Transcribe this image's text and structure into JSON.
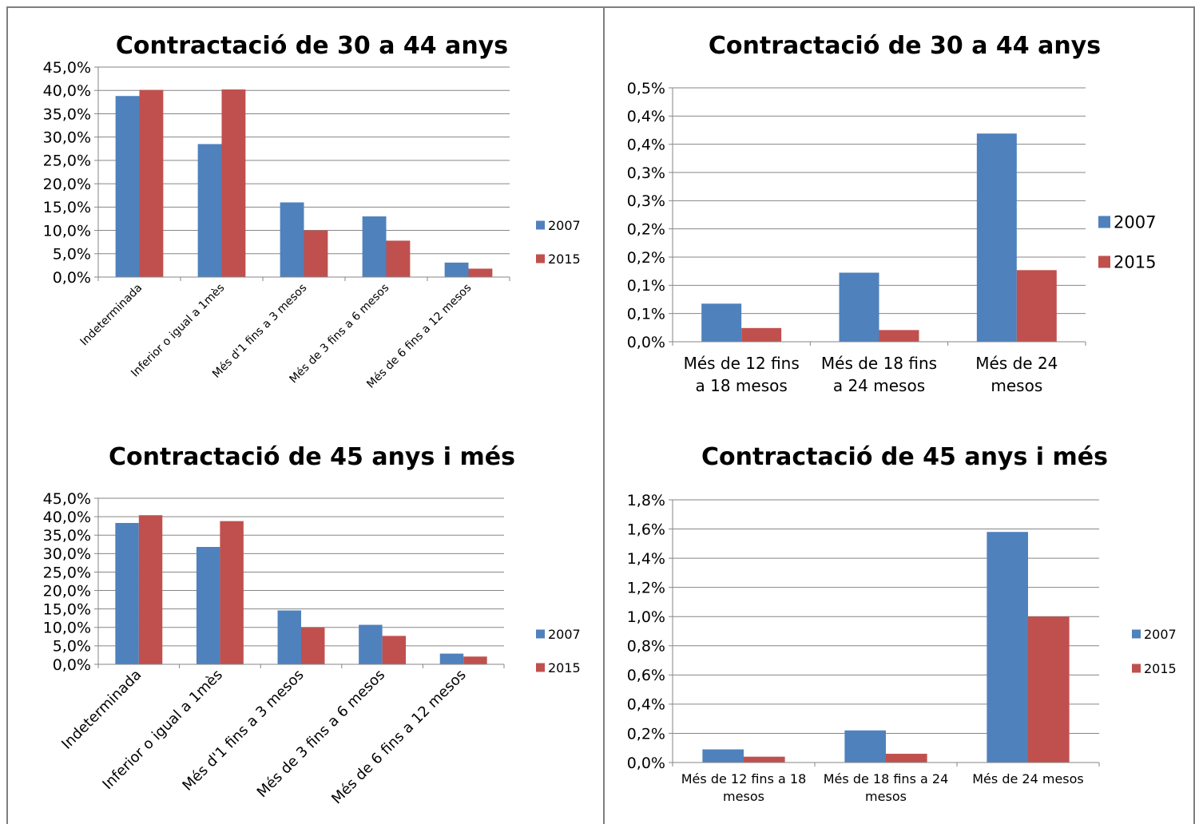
{
  "colors": {
    "series_2007": "#4f81bd",
    "series_2015": "#c0504d",
    "grid": "#868686",
    "axis": "#868686"
  },
  "chart_data": [
    {
      "type": "bar",
      "title": "Contractació de 30 a 44 anys",
      "categories": [
        "Indeterminada",
        "Inferior o igual a 1mès",
        "Més d'1 fins a 3 mesos",
        "Més de 3 fins a 6 mesos",
        "Més de 6 fins a 12 mesos"
      ],
      "series": [
        {
          "name": "2007",
          "values": [
            38.8,
            28.5,
            16.0,
            13.0,
            3.1
          ]
        },
        {
          "name": "2015",
          "values": [
            40.1,
            40.2,
            10.0,
            7.8,
            1.8
          ]
        }
      ],
      "ylim": [
        0,
        45
      ],
      "yticks": [
        "0,0%",
        "5,0%",
        "10,0%",
        "15,0%",
        "20,0%",
        "25,0%",
        "30,0%",
        "35,0%",
        "40,0%",
        "45,0%"
      ],
      "legend": "right",
      "grid": true
    },
    {
      "type": "bar",
      "title": "Contractació de 30 a 44 anys",
      "categories": [
        "Més de 12 fins a 18 mesos",
        "Més de 18 fins a 24 mesos",
        "Més de 24 mesos"
      ],
      "category_lines": [
        [
          "Més de 12 fins",
          "a 18 mesos"
        ],
        [
          "Més de 18 fins",
          "a 24 mesos"
        ],
        [
          "Més de 24",
          "mesos"
        ]
      ],
      "series": [
        {
          "name": "2007",
          "values": [
            0.075,
            0.136,
            0.41
          ]
        },
        {
          "name": "2015",
          "values": [
            0.027,
            0.023,
            0.141
          ]
        }
      ],
      "ylim": [
        0,
        0.5
      ],
      "yticks": [
        "0,0%",
        "0,1%",
        "0,1%",
        "0,2%",
        "0,2%",
        "0,3%",
        "0,3%",
        "0,4%",
        "0,4%",
        "0,5%"
      ],
      "legend": "right",
      "grid": true
    },
    {
      "type": "bar",
      "title": "Contractació de 45 anys i més",
      "categories": [
        "Indeterminada",
        "Inferior o igual a 1mès",
        "Més d'1 fins a 3 mesos",
        "Més de 3 fins a 6 mesos",
        "Més de 6 fins a 12 mesos"
      ],
      "series": [
        {
          "name": "2007",
          "values": [
            38.3,
            31.8,
            14.6,
            10.7,
            2.9
          ]
        },
        {
          "name": "2015",
          "values": [
            40.4,
            38.8,
            10.0,
            7.7,
            2.1
          ]
        }
      ],
      "ylim": [
        0,
        45
      ],
      "yticks": [
        "0,0%",
        "5,0%",
        "10,0%",
        "15,0%",
        "20,0%",
        "25,0%",
        "30,0%",
        "35,0%",
        "40,0%",
        "45,0%"
      ],
      "legend": "right",
      "grid": true
    },
    {
      "type": "bar",
      "title": "Contractació de 45 anys i més",
      "categories": [
        "Més de 12 fins a 18 mesos",
        "Més de 18 fins a 24 mesos",
        "Més de 24 mesos"
      ],
      "category_lines": [
        [
          "Més de 12 fins a 18",
          "mesos"
        ],
        [
          "Més de 18 fins a 24",
          "mesos"
        ],
        [
          "Més de 24 mesos"
        ]
      ],
      "series": [
        {
          "name": "2007",
          "values": [
            0.09,
            0.22,
            1.58
          ]
        },
        {
          "name": "2015",
          "values": [
            0.04,
            0.06,
            1.0
          ]
        }
      ],
      "ylim": [
        0,
        1.8
      ],
      "yticks": [
        "0,0%",
        "0,2%",
        "0,4%",
        "0,6%",
        "0,8%",
        "1,0%",
        "1,2%",
        "1,4%",
        "1,6%",
        "1,8%"
      ],
      "legend": "right",
      "grid": true
    }
  ]
}
